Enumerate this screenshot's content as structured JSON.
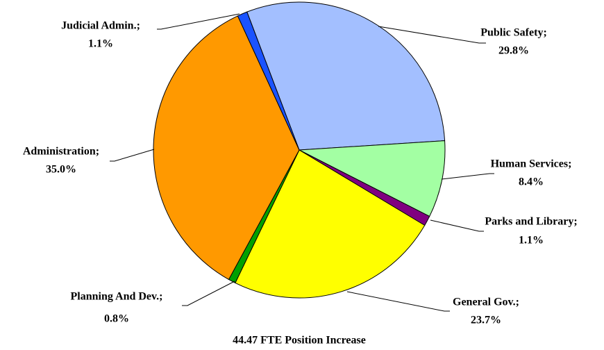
{
  "chart_data": {
    "type": "pie",
    "title": "44.47 FTE Position Increase",
    "categories": [
      "Public Safety;",
      "Human Services;",
      "Parks and Library;",
      "General Gov.;",
      "Planning And Dev.;",
      "Administration;",
      "Judicial Admin.;"
    ],
    "values": [
      29.8,
      8.4,
      1.1,
      23.7,
      0.8,
      35.0,
      1.1
    ],
    "value_labels": [
      "29.8%",
      "8.4%",
      "1.1%",
      "23.7%",
      "0.8%",
      "35.0%",
      "1.1%"
    ],
    "colors": [
      "#a3bfff",
      "#a3ffa3",
      "#800080",
      "#ffff00",
      "#00a000",
      "#ff9900",
      "#1a53ff"
    ]
  }
}
